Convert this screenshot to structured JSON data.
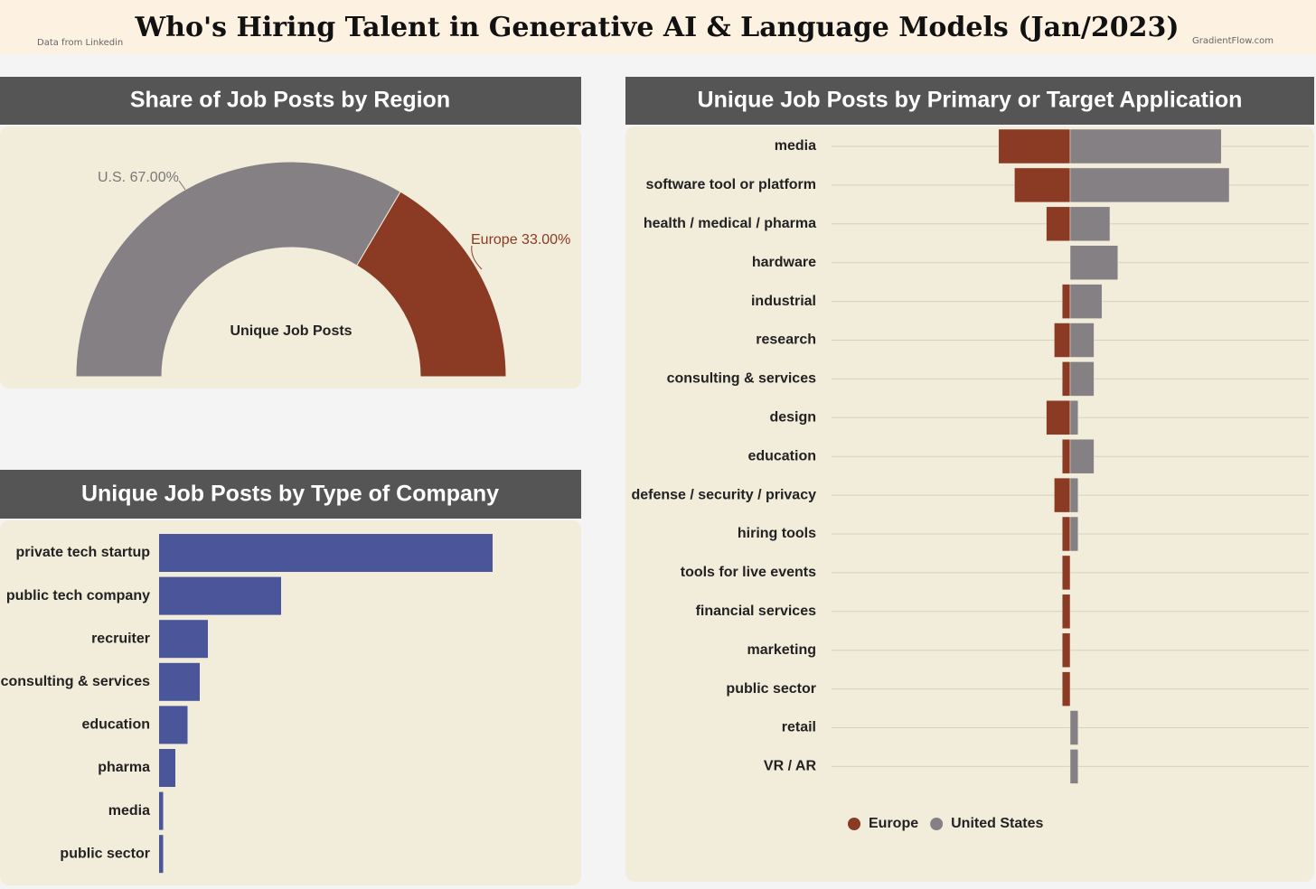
{
  "header": {
    "title": "Who's Hiring Talent in Generative AI & Language Models (Jan/2023)",
    "source": "Data from Linkedin",
    "credit": "GradientFlow.com"
  },
  "chart_data": [
    {
      "type": "pie",
      "title": "Share of Job Posts by Region",
      "center_label": "Unique Job Posts",
      "categories": [
        "U.S.",
        "Europe"
      ],
      "values": [
        67,
        33
      ],
      "value_labels": [
        "U.S. 67.00%",
        "Europe 33.00%"
      ],
      "colors": [
        "#858083",
        "#8b3a24"
      ]
    },
    {
      "type": "bar",
      "title": "Unique Job Posts by Type of Company",
      "categories": [
        "private tech startup",
        "public tech company",
        "recruiter",
        "consulting & services",
        "education",
        "pharma",
        "media",
        "public sector"
      ],
      "values": [
        82,
        30,
        12,
        10,
        7,
        4,
        1,
        1
      ],
      "color": "#4a5699",
      "xlim": [
        0,
        100
      ]
    },
    {
      "type": "diverging",
      "title": "Unique Job Posts by Primary or Target Application",
      "categories": [
        "media",
        "software tool or platform",
        "health / medical / pharma",
        "hardware",
        "industrial",
        "research",
        "consulting & services",
        "design",
        "education",
        "defense / security / privacy",
        "hiring tools",
        "tools for live events",
        "financial services",
        "marketing",
        "public sector",
        "retail",
        "VR / AR"
      ],
      "series": [
        {
          "name": "Europe",
          "color": "#8b3a24",
          "side": "left",
          "values": [
            9,
            7,
            3,
            0,
            1,
            2,
            1,
            3,
            1,
            2,
            1,
            1,
            1,
            1,
            1,
            0,
            0
          ]
        },
        {
          "name": "United States",
          "color": "#858083",
          "side": "right",
          "values": [
            19,
            20,
            5,
            6,
            4,
            3,
            3,
            1,
            3,
            1,
            1,
            0,
            0,
            0,
            0,
            1,
            1
          ]
        }
      ],
      "xlim": [
        -30,
        30
      ],
      "grid": true,
      "legend": "bottom"
    }
  ]
}
